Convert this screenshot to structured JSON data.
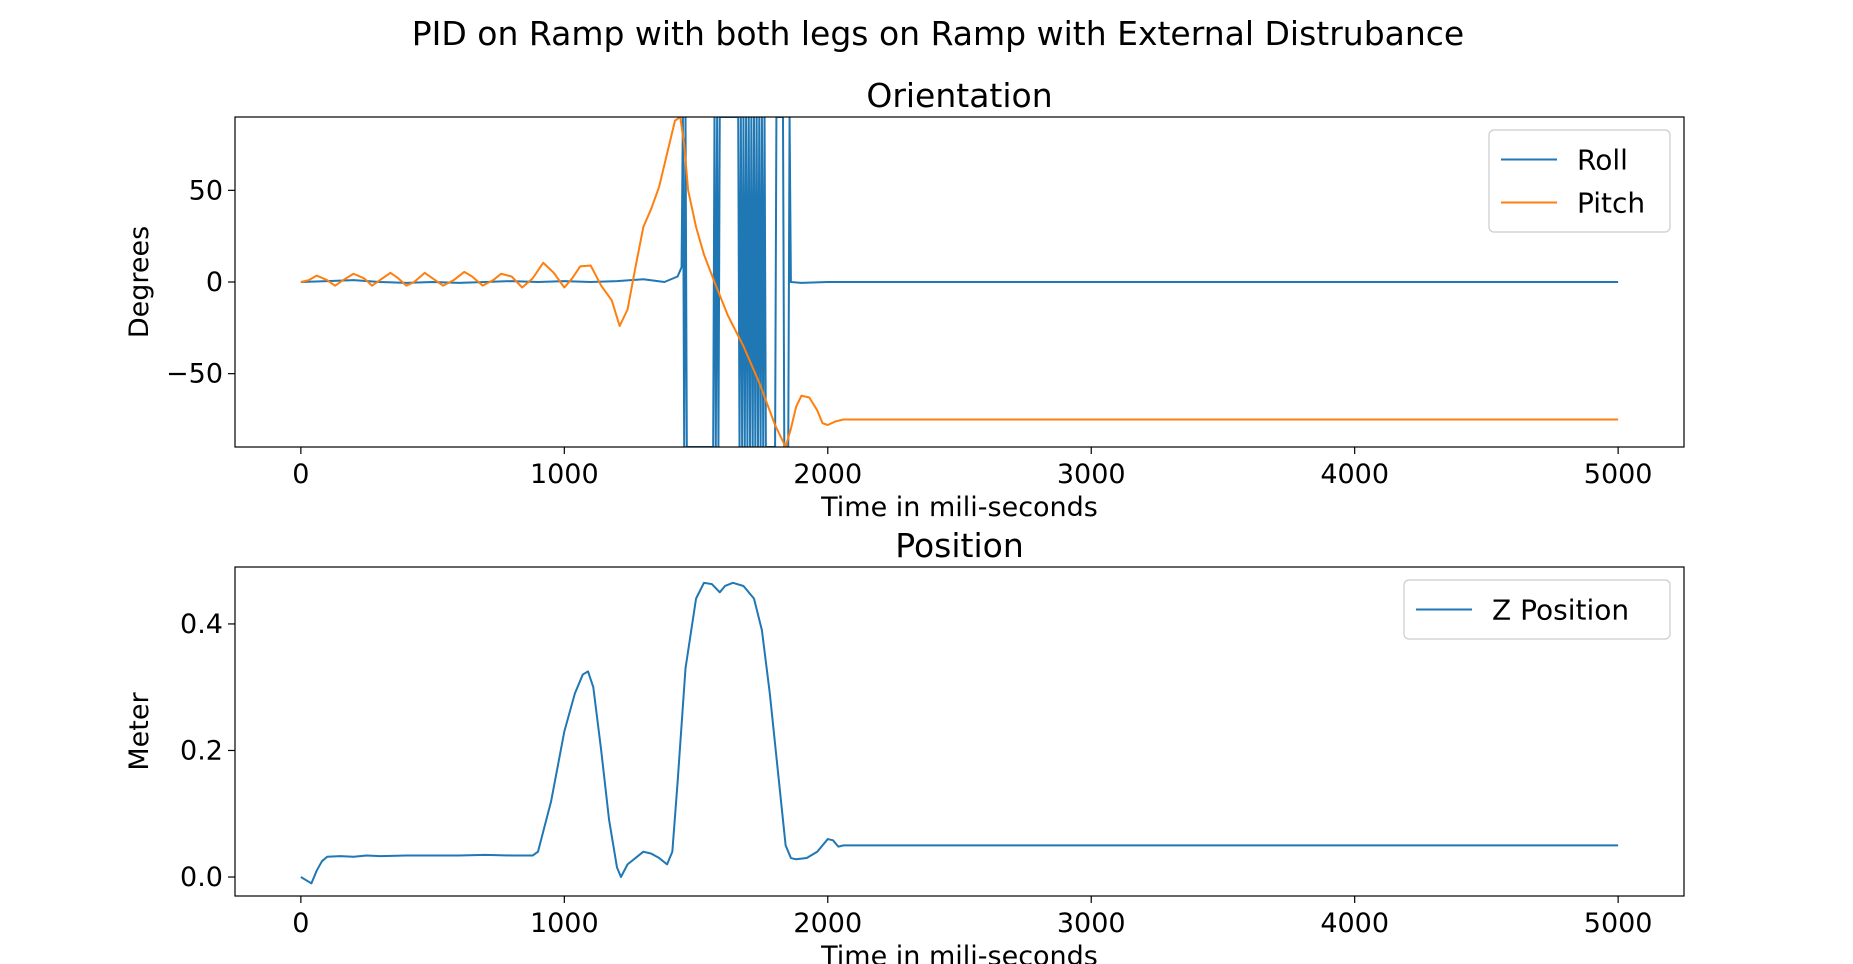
{
  "figure": {
    "suptitle": "PID on Ramp with both legs on Ramp with External Distrubance"
  },
  "colors": {
    "roll": "#1f77b4",
    "pitch": "#ff7f0e",
    "z_position": "#1f77b4"
  },
  "chart_data": [
    {
      "type": "line",
      "title": "Orientation",
      "xlabel": "Time in mili-seconds",
      "ylabel": "Degrees",
      "xlim": [
        -250,
        5250
      ],
      "ylim": [
        -90,
        90
      ],
      "xticks": [
        0,
        1000,
        2000,
        3000,
        4000,
        5000
      ],
      "xtick_labels": [
        "0",
        "1000",
        "2000",
        "3000",
        "4000",
        "5000"
      ],
      "yticks": [
        50,
        0,
        -50
      ],
      "ytick_labels": [
        "50",
        "0",
        "−50"
      ],
      "grid": false,
      "legend": "top-right",
      "series": [
        {
          "name": "Roll",
          "color": "#1f77b4",
          "x": [
            0,
            100,
            200,
            300,
            400,
            500,
            600,
            700,
            800,
            900,
            1000,
            1100,
            1200,
            1300,
            1380,
            1430,
            1445,
            1450,
            1455,
            1460,
            1465,
            1565,
            1570,
            1575,
            1580,
            1585,
            1590,
            1660,
            1665,
            1670,
            1675,
            1680,
            1685,
            1690,
            1695,
            1700,
            1705,
            1710,
            1715,
            1720,
            1725,
            1730,
            1735,
            1740,
            1745,
            1750,
            1755,
            1760,
            1765,
            1800,
            1805,
            1830,
            1835,
            1850,
            1855,
            1860,
            1900,
            2000,
            2500,
            3000,
            3500,
            4000,
            4500,
            5000
          ],
          "y": [
            0,
            0.5,
            1,
            0,
            -0.5,
            0,
            -0.5,
            0,
            0.5,
            0,
            0.5,
            0,
            0.5,
            1.5,
            0,
            3,
            8,
            90,
            -90,
            90,
            -90,
            -90,
            90,
            -90,
            90,
            -90,
            90,
            90,
            -90,
            90,
            -90,
            90,
            -90,
            90,
            -90,
            90,
            -90,
            90,
            -90,
            90,
            -90,
            90,
            -90,
            90,
            -90,
            90,
            -90,
            90,
            -90,
            -90,
            90,
            90,
            -90,
            -90,
            90,
            0,
            -0.5,
            0,
            0,
            0,
            0,
            0,
            0,
            0
          ]
        },
        {
          "name": "Pitch",
          "color": "#ff7f0e",
          "x": [
            0,
            30,
            60,
            100,
            130,
            160,
            200,
            240,
            270,
            300,
            340,
            370,
            400,
            430,
            470,
            510,
            540,
            580,
            620,
            650,
            690,
            730,
            760,
            800,
            840,
            880,
            920,
            960,
            1000,
            1030,
            1060,
            1100,
            1140,
            1180,
            1210,
            1240,
            1270,
            1300,
            1330,
            1360,
            1390,
            1420,
            1440,
            1455,
            1470,
            1500,
            1530,
            1570,
            1620,
            1680,
            1740,
            1800,
            1840,
            1860,
            1880,
            1900,
            1930,
            1960,
            1980,
            2000,
            2030,
            2060,
            2100,
            2500,
            3000,
            3500,
            4000,
            4500,
            5000
          ],
          "y": [
            0,
            1,
            3.5,
            1,
            -2,
            1,
            4.5,
            2,
            -2,
            1,
            5,
            2,
            -2,
            0,
            5,
            1,
            -2,
            1,
            5.5,
            3,
            -2,
            1,
            4.5,
            3,
            -3,
            2,
            10.5,
            5,
            -3,
            2,
            8.5,
            9,
            -2,
            -10,
            -24,
            -15,
            8,
            30,
            40,
            52,
            70,
            88,
            90,
            75,
            50,
            30,
            15,
            0,
            -18,
            -35,
            -55,
            -78,
            -90,
            -80,
            -68,
            -62,
            -63,
            -70,
            -77,
            -78,
            -76,
            -75,
            -75,
            -75,
            -75,
            -75,
            -75,
            -75,
            -75
          ]
        }
      ]
    },
    {
      "type": "line",
      "title": "Position",
      "xlabel": "Time in mili-seconds",
      "ylabel": "Meter",
      "xlim": [
        -250,
        5250
      ],
      "ylim": [
        -0.03,
        0.49
      ],
      "xticks": [
        0,
        1000,
        2000,
        3000,
        4000,
        5000
      ],
      "xtick_labels": [
        "0",
        "1000",
        "2000",
        "3000",
        "4000",
        "5000"
      ],
      "yticks": [
        0.0,
        0.2,
        0.4
      ],
      "ytick_labels": [
        "0.0",
        "0.2",
        "0.4"
      ],
      "grid": false,
      "legend": "top-right",
      "series": [
        {
          "name": "Z Position",
          "color": "#1f77b4",
          "x": [
            0,
            20,
            40,
            60,
            80,
            100,
            150,
            200,
            250,
            300,
            400,
            500,
            600,
            700,
            800,
            880,
            900,
            950,
            1000,
            1040,
            1070,
            1090,
            1110,
            1140,
            1170,
            1200,
            1215,
            1240,
            1270,
            1300,
            1330,
            1360,
            1390,
            1410,
            1430,
            1460,
            1500,
            1530,
            1560,
            1590,
            1610,
            1640,
            1680,
            1720,
            1750,
            1780,
            1810,
            1840,
            1860,
            1880,
            1920,
            1960,
            2000,
            2020,
            2040,
            2060,
            2100,
            2500,
            3000,
            3500,
            4000,
            4500,
            5000
          ],
          "y": [
            0,
            -0.005,
            -0.01,
            0.01,
            0.025,
            0.032,
            0.033,
            0.032,
            0.034,
            0.033,
            0.034,
            0.034,
            0.034,
            0.035,
            0.034,
            0.034,
            0.04,
            0.12,
            0.23,
            0.29,
            0.32,
            0.325,
            0.3,
            0.2,
            0.09,
            0.015,
            0.0,
            0.02,
            0.03,
            0.04,
            0.037,
            0.03,
            0.02,
            0.04,
            0.15,
            0.33,
            0.44,
            0.465,
            0.463,
            0.45,
            0.46,
            0.465,
            0.46,
            0.44,
            0.39,
            0.29,
            0.17,
            0.05,
            0.03,
            0.028,
            0.03,
            0.04,
            0.06,
            0.058,
            0.048,
            0.05,
            0.05,
            0.05,
            0.05,
            0.05,
            0.05,
            0.05,
            0.05
          ]
        }
      ]
    }
  ]
}
